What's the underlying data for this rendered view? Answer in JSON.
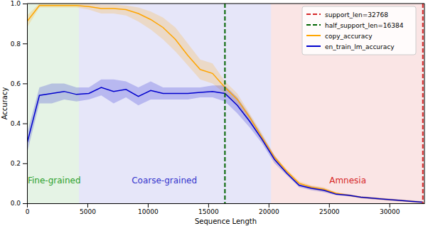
{
  "chart_data": {
    "type": "line",
    "x_label": "Sequence Length",
    "y_label": "Accuracy",
    "x": [
      0,
      1024,
      2048,
      3072,
      4096,
      5120,
      6144,
      7168,
      8192,
      9216,
      10240,
      11264,
      12288,
      13312,
      14336,
      15360,
      16384,
      17408,
      18432,
      19456,
      20480,
      21504,
      22528,
      23552,
      24576,
      25600,
      26624,
      27648,
      28672,
      29696,
      30720,
      31744,
      32768
    ],
    "series": [
      {
        "name": "copy_accuracy",
        "color": "#ffa500",
        "values": [
          0.91,
          0.99,
          0.99,
          0.99,
          0.99,
          0.985,
          0.975,
          0.975,
          0.97,
          0.95,
          0.92,
          0.88,
          0.82,
          0.74,
          0.67,
          0.65,
          0.58,
          0.52,
          0.43,
          0.33,
          0.23,
          0.16,
          0.1,
          0.08,
          0.07,
          0.05,
          0.04,
          0.03,
          0.025,
          0.02,
          0.015,
          0.01,
          0.005
        ],
        "lower": [
          0.88,
          0.98,
          0.98,
          0.98,
          0.98,
          0.97,
          0.95,
          0.95,
          0.94,
          0.91,
          0.87,
          0.82,
          0.76,
          0.69,
          0.62,
          0.6,
          0.55,
          0.49,
          0.41,
          0.31,
          0.22,
          0.15,
          0.09,
          0.07,
          0.06,
          0.045,
          0.035,
          0.025,
          0.02,
          0.015,
          0.01,
          0.005,
          0.0
        ],
        "upper": [
          0.94,
          1.0,
          1.0,
          1.0,
          1.0,
          1.0,
          0.995,
          0.995,
          0.99,
          0.98,
          0.96,
          0.93,
          0.88,
          0.8,
          0.72,
          0.7,
          0.61,
          0.55,
          0.45,
          0.35,
          0.24,
          0.17,
          0.11,
          0.09,
          0.08,
          0.055,
          0.045,
          0.035,
          0.03,
          0.025,
          0.02,
          0.015,
          0.01
        ]
      },
      {
        "name": "en_train_lm_accuracy",
        "color": "#0000cd",
        "values": [
          0.3,
          0.54,
          0.55,
          0.56,
          0.545,
          0.55,
          0.58,
          0.56,
          0.57,
          0.535,
          0.565,
          0.55,
          0.55,
          0.55,
          0.555,
          0.56,
          0.55,
          0.49,
          0.41,
          0.32,
          0.22,
          0.15,
          0.09,
          0.075,
          0.065,
          0.045,
          0.04,
          0.03,
          0.025,
          0.02,
          0.015,
          0.01,
          0.005
        ],
        "lower": [
          0.25,
          0.5,
          0.5,
          0.52,
          0.51,
          0.52,
          0.54,
          0.5,
          0.53,
          0.49,
          0.52,
          0.52,
          0.52,
          0.52,
          0.53,
          0.53,
          0.51,
          0.45,
          0.38,
          0.3,
          0.2,
          0.14,
          0.08,
          0.065,
          0.055,
          0.04,
          0.035,
          0.025,
          0.02,
          0.015,
          0.01,
          0.005,
          0.0
        ],
        "upper": [
          0.35,
          0.58,
          0.6,
          0.6,
          0.58,
          0.58,
          0.62,
          0.62,
          0.61,
          0.58,
          0.61,
          0.58,
          0.58,
          0.58,
          0.58,
          0.59,
          0.59,
          0.53,
          0.44,
          0.34,
          0.24,
          0.16,
          0.1,
          0.085,
          0.075,
          0.05,
          0.045,
          0.035,
          0.03,
          0.025,
          0.02,
          0.015,
          0.01
        ]
      }
    ],
    "vlines": [
      {
        "name": "support_len=32768",
        "x": 32768,
        "color": "#d62728",
        "line_style": "dashed"
      },
      {
        "name": "half_support_len=16384",
        "x": 16384,
        "color": "#006400",
        "line_style": "dashed"
      }
    ],
    "regions": [
      {
        "label": "Fine-grained",
        "start": 0,
        "end": 4300,
        "color": "#2ca02c"
      },
      {
        "label": "Coarse-grained",
        "start": 4300,
        "end": 20200,
        "color": "#3333cc"
      },
      {
        "label": "Amnesia",
        "start": 20200,
        "end": 32900,
        "color": "#d62728"
      }
    ],
    "xlim": [
      0,
      32900
    ],
    "ylim": [
      0,
      1.0
    ],
    "xticks": [
      0,
      5000,
      10000,
      15000,
      20000,
      25000,
      30000
    ],
    "yticks": [
      {
        "value": 0,
        "label": "0.0"
      },
      {
        "value": 0.2,
        "label": "0.2"
      },
      {
        "value": 0.4,
        "label": "0.4"
      },
      {
        "value": 0.6,
        "label": "0.6"
      },
      {
        "value": 0.8,
        "label": "0.8"
      },
      {
        "value": 1.0,
        "label": "1.0"
      }
    ],
    "legend": "upper right",
    "grid": false
  }
}
